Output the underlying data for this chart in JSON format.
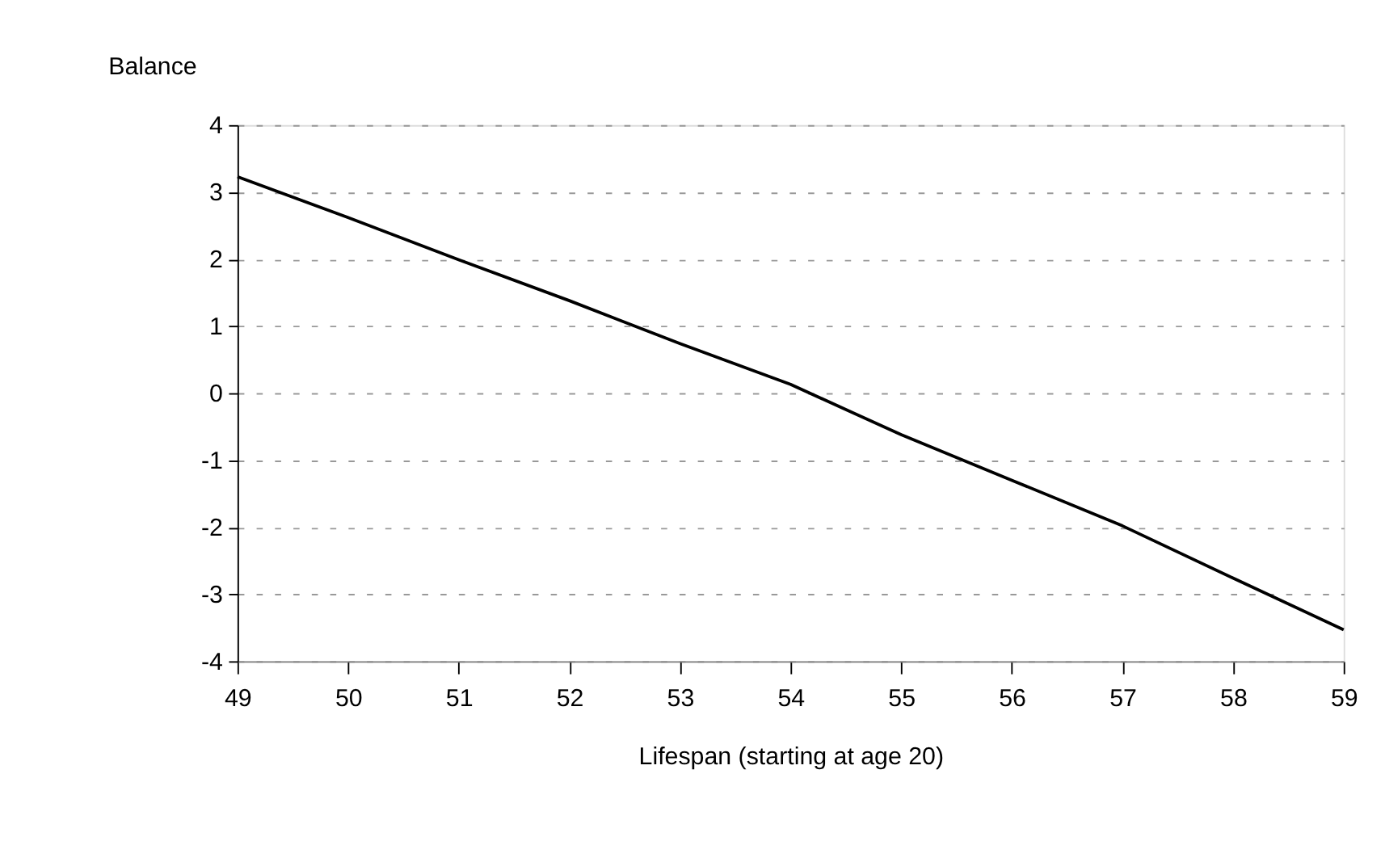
{
  "chart_data": {
    "type": "line",
    "ylabel": "Balance",
    "xlabel": "Lifespan (starting at age 20)",
    "x": [
      49,
      50,
      51,
      52,
      53,
      54,
      55,
      56,
      57,
      58,
      59
    ],
    "series": [
      {
        "color": "#000000",
        "values": [
          3.23,
          2.62,
          1.99,
          1.38,
          0.74,
          0.13,
          -0.62,
          -1.3,
          -1.98,
          -2.76,
          -3.53
        ]
      }
    ],
    "xlim": [
      49,
      59
    ],
    "xticks": [
      49,
      50,
      51,
      52,
      53,
      54,
      55,
      56,
      57,
      58,
      59
    ],
    "ylim": [
      -4,
      4
    ],
    "yticks": [
      -4,
      -3,
      -2,
      -1,
      0,
      1,
      2,
      3,
      4
    ],
    "grid": "y",
    "line_style": "solid",
    "marker": "none",
    "legend": false
  }
}
